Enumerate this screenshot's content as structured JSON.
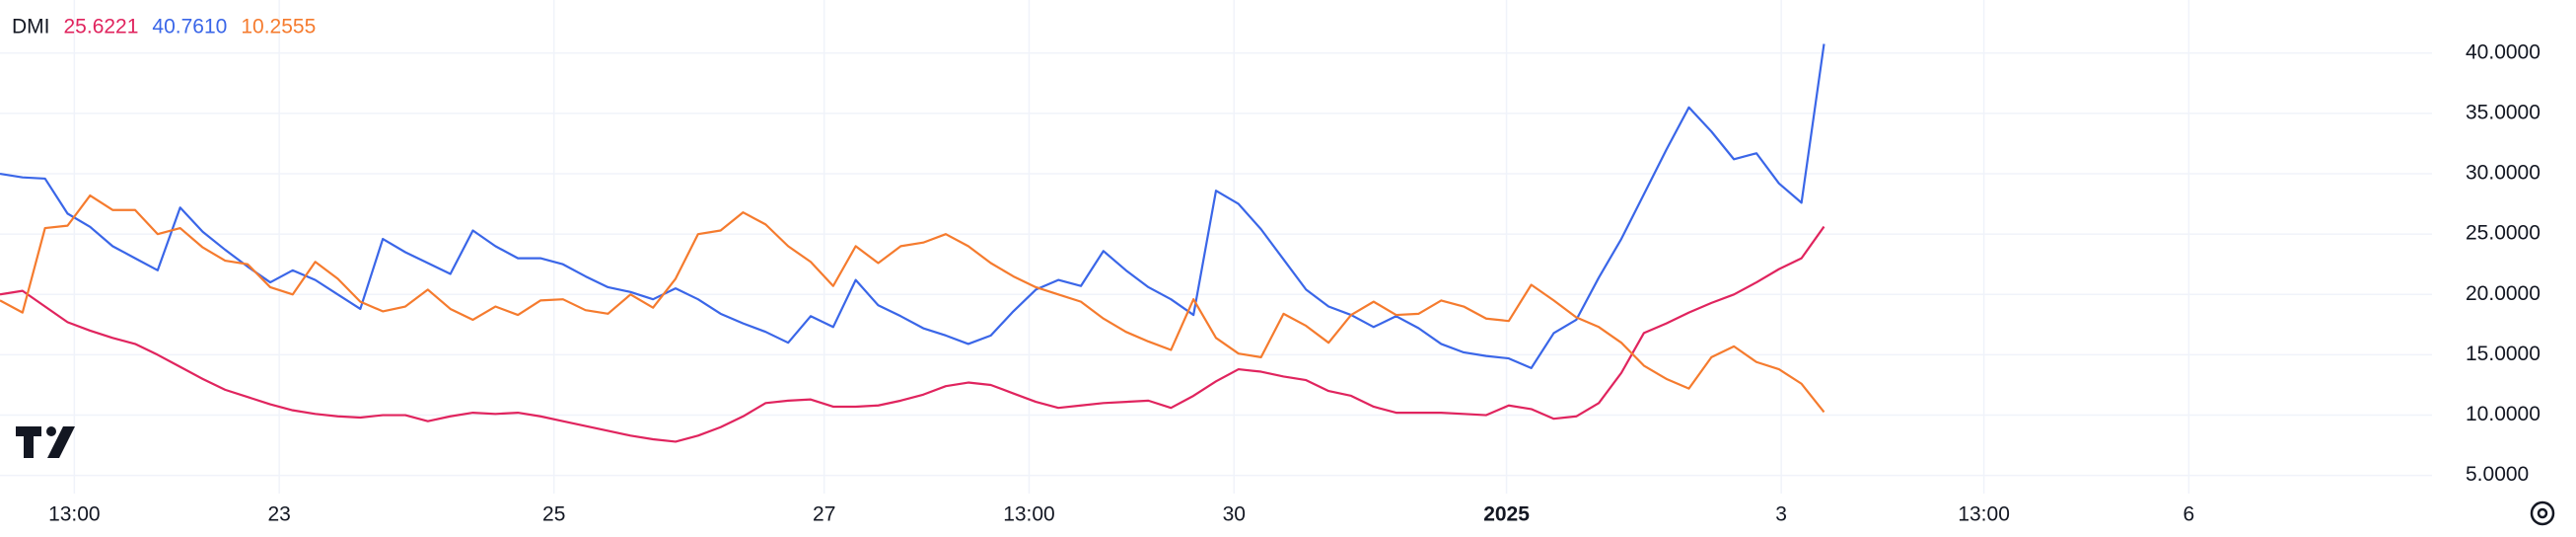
{
  "chart_data": {
    "type": "line",
    "title": "DMI",
    "series": [
      {
        "last_label": "25.6221",
        "color": "#e0245e",
        "values": [
          20.0,
          20.3,
          19.0,
          17.7,
          17.0,
          16.4,
          15.9,
          15.0,
          14.0,
          13.0,
          12.1,
          11.5,
          10.9,
          10.4,
          10.1,
          9.9,
          9.8,
          10.0,
          10.0,
          9.5,
          9.9,
          10.2,
          10.1,
          10.2,
          9.9,
          9.5,
          9.1,
          8.7,
          8.3,
          8.0,
          7.8,
          8.3,
          9.0,
          9.9,
          11.0,
          11.2,
          11.3,
          10.7,
          10.7,
          10.8,
          11.2,
          11.7,
          12.4,
          12.7,
          12.5,
          11.8,
          11.1,
          10.6,
          10.8,
          11.0,
          11.1,
          11.2,
          10.6,
          11.6,
          12.8,
          13.8,
          13.6,
          13.2,
          12.9,
          12.0,
          11.6,
          10.7,
          10.2,
          10.2,
          10.2,
          10.1,
          10.0,
          10.8,
          10.5,
          9.7,
          9.9,
          11.0,
          13.5,
          16.8,
          17.6,
          18.5,
          19.3,
          20.0,
          21.0,
          22.1,
          23.0,
          25.6221
        ]
      },
      {
        "last_label": "40.7610",
        "color": "#3a66e8",
        "values": [
          30.0,
          29.7,
          29.6,
          26.7,
          25.6,
          24.0,
          23.0,
          22.0,
          27.2,
          25.2,
          23.7,
          22.3,
          21.0,
          22.0,
          21.2,
          20.0,
          18.8,
          24.6,
          23.5,
          22.6,
          21.7,
          25.3,
          24.0,
          23.0,
          23.0,
          22.5,
          21.5,
          20.6,
          20.2,
          19.6,
          20.5,
          19.6,
          18.4,
          17.6,
          16.9,
          16.0,
          18.2,
          17.3,
          21.2,
          19.1,
          18.2,
          17.2,
          16.6,
          15.9,
          16.6,
          18.6,
          20.4,
          21.2,
          20.7,
          23.6,
          22.0,
          20.6,
          19.6,
          18.3,
          28.6,
          27.5,
          25.4,
          22.9,
          20.4,
          19.0,
          18.3,
          17.3,
          18.2,
          17.2,
          15.9,
          15.2,
          14.9,
          14.7,
          13.9,
          16.8,
          17.9,
          21.4,
          24.6,
          28.3,
          32.0,
          35.5,
          33.5,
          31.2,
          31.7,
          29.2,
          27.6,
          40.761
        ]
      },
      {
        "last_label": "10.2555",
        "color": "#f57b2e",
        "values": [
          19.5,
          18.5,
          25.5,
          25.7,
          28.2,
          27.0,
          27.0,
          25.0,
          25.5,
          23.9,
          22.8,
          22.5,
          20.6,
          20.0,
          22.7,
          21.3,
          19.4,
          18.6,
          19.0,
          20.4,
          18.8,
          17.9,
          19.0,
          18.3,
          19.5,
          19.6,
          18.7,
          18.4,
          20.0,
          18.9,
          21.3,
          25.0,
          25.3,
          26.8,
          25.8,
          24.0,
          22.7,
          20.7,
          24.0,
          22.6,
          24.0,
          24.3,
          25.0,
          24.0,
          22.6,
          21.5,
          20.6,
          20.0,
          19.4,
          18.0,
          16.9,
          16.1,
          15.4,
          19.6,
          16.4,
          15.1,
          14.8,
          18.4,
          17.4,
          16.0,
          18.3,
          19.4,
          18.3,
          18.4,
          19.5,
          19.0,
          18.0,
          17.8,
          20.8,
          19.5,
          18.1,
          17.3,
          16.0,
          14.1,
          13.0,
          12.2,
          14.8,
          15.7,
          14.4,
          13.8,
          12.6,
          10.2555
        ]
      }
    ],
    "xlim": [
      0,
      108
    ],
    "xticks": [
      {
        "value": 3.3,
        "label": "13:00"
      },
      {
        "value": 12.4,
        "label": "23"
      },
      {
        "value": 24.6,
        "label": "25"
      },
      {
        "value": 36.6,
        "label": "27"
      },
      {
        "value": 45.7,
        "label": "13:00"
      },
      {
        "value": 54.8,
        "label": "30"
      },
      {
        "value": 66.9,
        "label": "2025"
      },
      {
        "value": 79.1,
        "label": "3"
      },
      {
        "value": 88.1,
        "label": "13:00"
      },
      {
        "value": 97.2,
        "label": "6"
      }
    ],
    "ylim": [
      3.5,
      44.4
    ],
    "yticks": [
      {
        "value": 5,
        "label": "5.0000"
      },
      {
        "value": 10,
        "label": "10.0000"
      },
      {
        "value": 15,
        "label": "15.0000"
      },
      {
        "value": 20,
        "label": "20.0000"
      },
      {
        "value": 25,
        "label": "25.0000"
      },
      {
        "value": 30,
        "label": "30.0000"
      },
      {
        "value": 35,
        "label": "35.0000"
      },
      {
        "value": 40,
        "label": "40.0000"
      }
    ],
    "grid": true
  }
}
